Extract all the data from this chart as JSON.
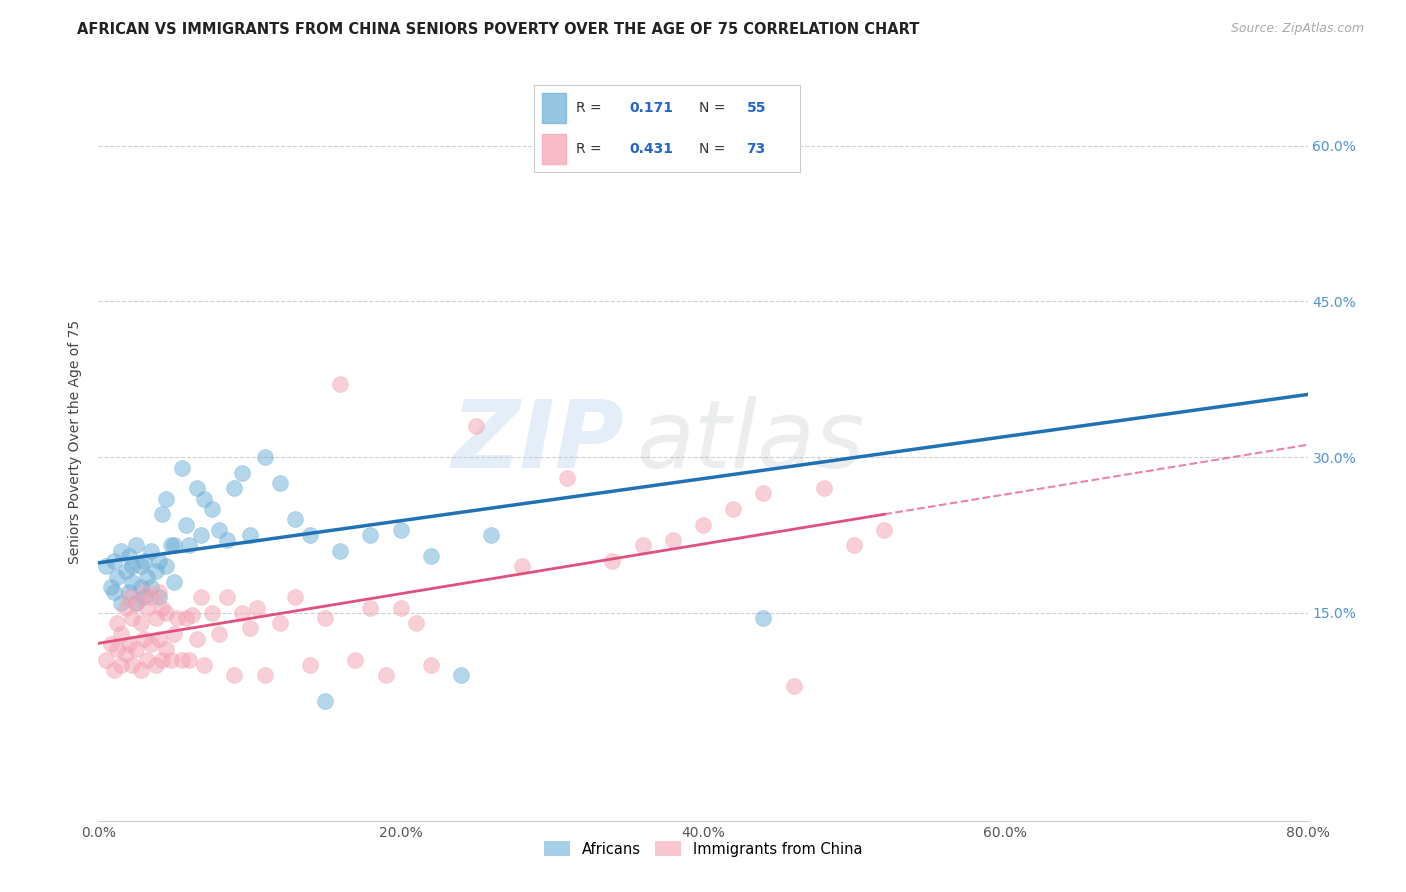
{
  "title": "AFRICAN VS IMMIGRANTS FROM CHINA SENIORS POVERTY OVER THE AGE OF 75 CORRELATION CHART",
  "source": "Source: ZipAtlas.com",
  "ylabel": "Seniors Poverty Over the Age of 75",
  "xlim": [
    0.0,
    0.8
  ],
  "ylim": [
    -0.05,
    0.68
  ],
  "xticks": [
    0.0,
    0.2,
    0.4,
    0.6,
    0.8
  ],
  "xtick_labels": [
    "0.0%",
    "20.0%",
    "40.0%",
    "60.0%",
    "80.0%"
  ],
  "ytick_vals": [
    0.15,
    0.3,
    0.45,
    0.6
  ],
  "ytick_labels": [
    "15.0%",
    "30.0%",
    "45.0%",
    "60.0%"
  ],
  "grid_color": "#cccccc",
  "background_color": "#ffffff",
  "legend_R1": "0.171",
  "legend_N1": "55",
  "legend_R2": "0.431",
  "legend_N2": "73",
  "blue_color": "#6baed6",
  "pink_color": "#f4a0b0",
  "blue_line_color": "#2171b5",
  "pink_line_color": "#e05080",
  "africans_x": [
    0.005,
    0.008,
    0.01,
    0.01,
    0.012,
    0.015,
    0.015,
    0.018,
    0.02,
    0.02,
    0.022,
    0.022,
    0.025,
    0.025,
    0.028,
    0.028,
    0.03,
    0.03,
    0.032,
    0.035,
    0.035,
    0.038,
    0.04,
    0.04,
    0.042,
    0.045,
    0.045,
    0.048,
    0.05,
    0.05,
    0.055,
    0.058,
    0.06,
    0.065,
    0.068,
    0.07,
    0.075,
    0.08,
    0.085,
    0.09,
    0.095,
    0.1,
    0.11,
    0.12,
    0.13,
    0.14,
    0.15,
    0.16,
    0.18,
    0.2,
    0.22,
    0.24,
    0.26,
    0.31,
    0.44
  ],
  "africans_y": [
    0.195,
    0.175,
    0.2,
    0.17,
    0.185,
    0.16,
    0.21,
    0.19,
    0.17,
    0.205,
    0.18,
    0.195,
    0.16,
    0.215,
    0.175,
    0.195,
    0.2,
    0.165,
    0.185,
    0.21,
    0.175,
    0.19,
    0.165,
    0.2,
    0.245,
    0.26,
    0.195,
    0.215,
    0.18,
    0.215,
    0.29,
    0.235,
    0.215,
    0.27,
    0.225,
    0.26,
    0.25,
    0.23,
    0.22,
    0.27,
    0.285,
    0.225,
    0.3,
    0.275,
    0.24,
    0.225,
    0.065,
    0.21,
    0.225,
    0.23,
    0.205,
    0.09,
    0.225,
    0.605,
    0.145
  ],
  "china_x": [
    0.005,
    0.008,
    0.01,
    0.012,
    0.012,
    0.015,
    0.015,
    0.018,
    0.018,
    0.02,
    0.02,
    0.022,
    0.022,
    0.025,
    0.025,
    0.028,
    0.028,
    0.03,
    0.03,
    0.032,
    0.032,
    0.035,
    0.035,
    0.038,
    0.038,
    0.04,
    0.04,
    0.042,
    0.042,
    0.045,
    0.045,
    0.048,
    0.05,
    0.052,
    0.055,
    0.058,
    0.06,
    0.062,
    0.065,
    0.068,
    0.07,
    0.075,
    0.08,
    0.085,
    0.09,
    0.095,
    0.1,
    0.105,
    0.11,
    0.12,
    0.13,
    0.14,
    0.15,
    0.16,
    0.17,
    0.18,
    0.19,
    0.2,
    0.21,
    0.22,
    0.25,
    0.28,
    0.31,
    0.34,
    0.36,
    0.38,
    0.4,
    0.42,
    0.44,
    0.46,
    0.48,
    0.5,
    0.52
  ],
  "china_y": [
    0.105,
    0.12,
    0.095,
    0.115,
    0.14,
    0.1,
    0.13,
    0.11,
    0.155,
    0.12,
    0.165,
    0.1,
    0.145,
    0.115,
    0.16,
    0.095,
    0.14,
    0.125,
    0.17,
    0.105,
    0.155,
    0.12,
    0.165,
    0.1,
    0.145,
    0.125,
    0.17,
    0.105,
    0.155,
    0.115,
    0.15,
    0.105,
    0.13,
    0.145,
    0.105,
    0.145,
    0.105,
    0.148,
    0.125,
    0.165,
    0.1,
    0.15,
    0.13,
    0.165,
    0.09,
    0.15,
    0.135,
    0.155,
    0.09,
    0.14,
    0.165,
    0.1,
    0.145,
    0.37,
    0.105,
    0.155,
    0.09,
    0.155,
    0.14,
    0.1,
    0.33,
    0.195,
    0.28,
    0.2,
    0.215,
    0.22,
    0.235,
    0.25,
    0.265,
    0.08,
    0.27,
    0.215,
    0.23
  ]
}
